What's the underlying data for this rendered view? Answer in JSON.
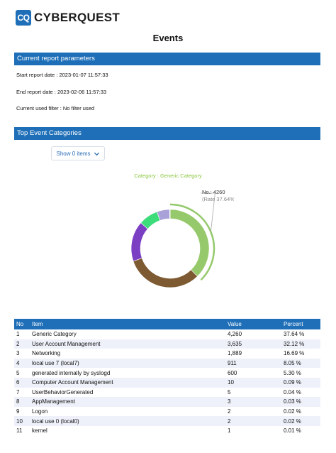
{
  "header": {
    "logo_mark": "CQ",
    "logo_text": "CYBERQUEST",
    "title": "Events"
  },
  "params": {
    "section_title": "Current report parameters",
    "start": "Start report date : 2023-01-07 11:57:33",
    "end": "End report date : 2023-02-06 11:57:33",
    "filter": "Current used filter : No filter used"
  },
  "categories_section": {
    "title": "Top Event Categories",
    "show_button": "Show 0 items",
    "chevron_icon": "chevron-down-icon"
  },
  "chart_data": {
    "type": "pie",
    "title": "Category : Generic Category",
    "highlight_label": "No.: 4260",
    "highlight_rate": "(Rate 37.64%)",
    "categories": [
      "Generic Category",
      "User Account Management",
      "Networking",
      "local use 7 (local7)",
      "generated internally by syslogd",
      "Computer Account Management",
      "UserBehaviorGenerated",
      "AppManagement",
      "Logon",
      "local use 0 (local0)",
      "kernel"
    ],
    "values": [
      4260,
      3635,
      1889,
      911,
      600,
      10,
      5,
      3,
      2,
      2,
      1
    ],
    "colors": [
      "#95c96b",
      "#7d5a32",
      "#7b3fc4",
      "#3ddc7a",
      "#a9a2d8",
      "#d6d6d6",
      "#d6d6d6",
      "#d6d6d6",
      "#d6d6d6",
      "#d6d6d6",
      "#d6d6d6"
    ]
  },
  "table": {
    "headers": [
      "No",
      "Item",
      "Value",
      "Percent"
    ],
    "rows": [
      [
        "1",
        "Generic Category",
        "4,260",
        "37.64 %"
      ],
      [
        "2",
        "User Account Management",
        "3,635",
        "32.12 %"
      ],
      [
        "3",
        "Networking",
        "1,889",
        "16.69 %"
      ],
      [
        "4",
        "local use 7 (local7)",
        "911",
        "8.05 %"
      ],
      [
        "5",
        " generated internally by syslogd",
        "600",
        "5.30 %"
      ],
      [
        "6",
        "Computer Account Management",
        "10",
        "0.09 %"
      ],
      [
        "7",
        "UserBehaviorGenerated",
        "5",
        "0.04 %"
      ],
      [
        "8",
        "AppManagement",
        "3",
        "0.03 %"
      ],
      [
        "9",
        "Logon",
        "2",
        "0.02 %"
      ],
      [
        "10",
        "local use 0 (local0)",
        "2",
        "0.02 %"
      ],
      [
        "11",
        "kernel",
        "1",
        "0.01 %"
      ]
    ]
  }
}
